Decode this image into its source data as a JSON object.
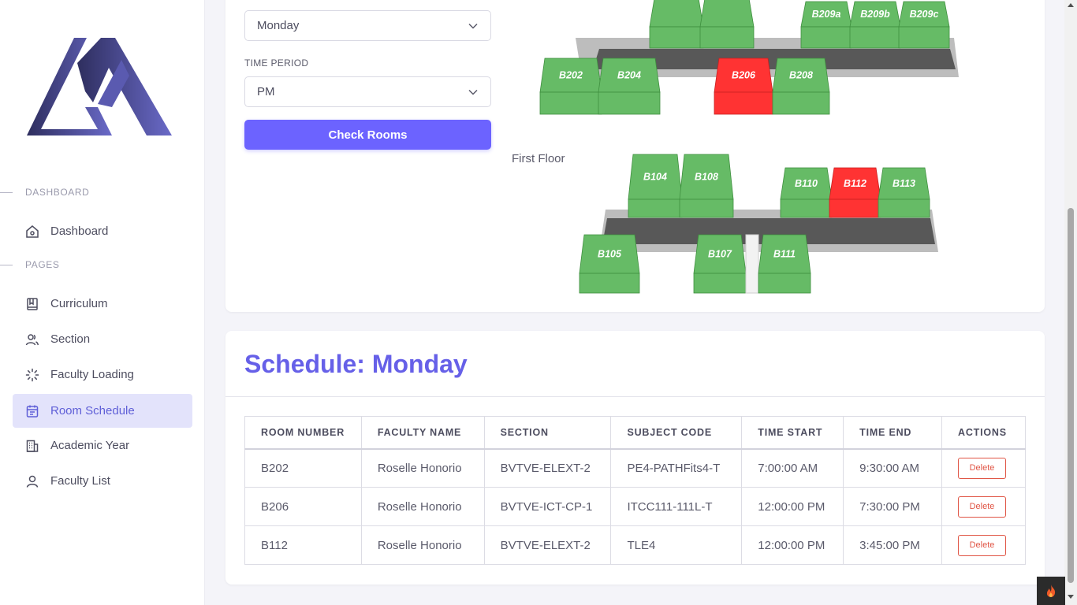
{
  "sidebar": {
    "sections": [
      {
        "label": "DASHBOARD"
      },
      {
        "label": "PAGES"
      }
    ],
    "items": [
      {
        "label": "Dashboard",
        "icon": "home-icon"
      },
      {
        "label": "Curriculum",
        "icon": "book-icon"
      },
      {
        "label": "Section",
        "icon": "users-icon"
      },
      {
        "label": "Faculty Loading",
        "icon": "loader-icon"
      },
      {
        "label": "Room Schedule",
        "icon": "calendar-icon",
        "active": true
      },
      {
        "label": "Academic Year",
        "icon": "building-icon"
      },
      {
        "label": "Faculty List",
        "icon": "user-icon"
      }
    ]
  },
  "filters": {
    "day_value": "Monday",
    "time_period_label": "TIME PERIOD",
    "time_period_value": "PM",
    "check_button": "Check Rooms"
  },
  "map": {
    "first_floor_label": "First Floor",
    "second_floor_rooms": [
      {
        "label": "",
        "status": "available"
      },
      {
        "label": "",
        "status": "available"
      },
      {
        "label": "B209a",
        "status": "available"
      },
      {
        "label": "B209b",
        "status": "available"
      },
      {
        "label": "B209c",
        "status": "available"
      },
      {
        "label": "B202",
        "status": "available"
      },
      {
        "label": "B204",
        "status": "available"
      },
      {
        "label": "B206",
        "status": "occupied"
      },
      {
        "label": "B208",
        "status": "available"
      }
    ],
    "first_floor_rooms": [
      {
        "label": "B104",
        "status": "available"
      },
      {
        "label": "B108",
        "status": "available"
      },
      {
        "label": "B110",
        "status": "available"
      },
      {
        "label": "B112",
        "status": "occupied"
      },
      {
        "label": "B113",
        "status": "available"
      },
      {
        "label": "B105",
        "status": "available"
      },
      {
        "label": "B107",
        "status": "available"
      },
      {
        "label": "B111",
        "status": "available"
      }
    ],
    "colors": {
      "available": "#66bb66",
      "occupied": "#ff3333",
      "corridor": "#5a5a5a"
    }
  },
  "schedule": {
    "title": "Schedule: Monday",
    "columns": [
      "ROOM NUMBER",
      "FACULTY NAME",
      "SECTION",
      "SUBJECT CODE",
      "TIME START",
      "TIME END",
      "ACTIONS"
    ],
    "rows": [
      {
        "room": "B202",
        "faculty": "Roselle Honorio",
        "section": "BVTVE-ELEXT-2",
        "subject": "PE4-PATHFits4-T",
        "start": "7:00:00 AM",
        "end": "9:30:00 AM",
        "action": "Delete"
      },
      {
        "room": "B206",
        "faculty": "Roselle Honorio",
        "section": "BVTVE-ICT-CP-1",
        "subject": "ITCC111-111L-T",
        "start": "12:00:00 PM",
        "end": "7:30:00 PM",
        "action": "Delete"
      },
      {
        "room": "B112",
        "faculty": "Roselle Honorio",
        "section": "BVTVE-ELEXT-2",
        "subject": "TLE4",
        "start": "12:00:00 PM",
        "end": "3:45:00 PM",
        "action": "Delete"
      }
    ]
  },
  "accent_color": "#6c63ff"
}
